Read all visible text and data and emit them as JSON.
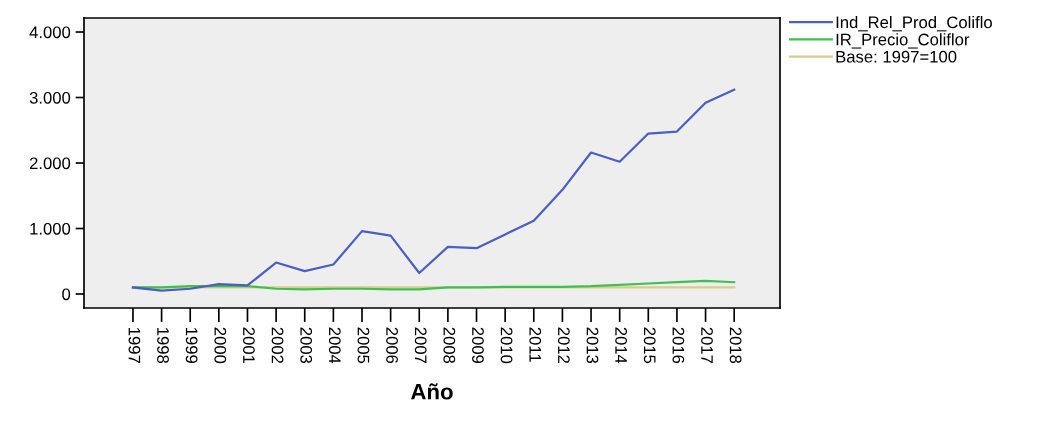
{
  "chart_data": {
    "type": "line",
    "xlabel": "Año",
    "categories": [
      "1997",
      "1998",
      "1999",
      "2000",
      "2001",
      "2002",
      "2003",
      "2004",
      "2005",
      "2006",
      "2007",
      "2008",
      "2009",
      "2010",
      "2011",
      "2012",
      "2013",
      "2014",
      "2015",
      "2016",
      "2017",
      "2018"
    ],
    "series": [
      {
        "name": "Ind_Rel_Prod_Coliflo",
        "color": "#4a5fbf",
        "values": [
          100,
          50,
          80,
          150,
          130,
          480,
          350,
          450,
          960,
          890,
          320,
          720,
          700,
          910,
          1120,
          1590,
          2160,
          2020,
          2450,
          2480,
          2920,
          3120
        ]
      },
      {
        "name": "IR_Precio_Coliflor",
        "color": "#3fc14f",
        "values": [
          100,
          100,
          120,
          120,
          120,
          80,
          70,
          80,
          80,
          70,
          70,
          100,
          100,
          110,
          110,
          110,
          120,
          140,
          160,
          180,
          200,
          180
        ]
      },
      {
        "name": "Base: 1997=100",
        "color": "#d9cc8c",
        "values": [
          100,
          100,
          100,
          100,
          100,
          100,
          100,
          100,
          100,
          100,
          100,
          100,
          100,
          100,
          100,
          100,
          100,
          100,
          100,
          100,
          100,
          100
        ]
      }
    ],
    "ylim": [
      -214,
      4214
    ],
    "yticks": [
      {
        "value": 0,
        "label": "0"
      },
      {
        "value": 1000,
        "label": "1.000"
      },
      {
        "value": 2000,
        "label": "2.000"
      },
      {
        "value": 3000,
        "label": "3.000"
      },
      {
        "value": 4000,
        "label": "4.000"
      }
    ],
    "grid": false,
    "legend": "top right",
    "marker": "none",
    "line_style": "solid"
  }
}
